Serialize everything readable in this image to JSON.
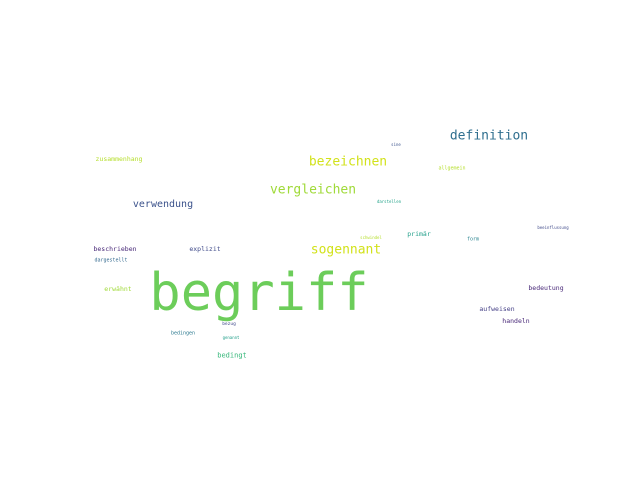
{
  "words": {
    "begriff": {
      "text": "begriff",
      "color": "#6ccd5a"
    },
    "definition": {
      "text": "definition",
      "color": "#2e6e8e"
    },
    "bezeichnen": {
      "text": "bezeichnen",
      "color": "#d2e21b"
    },
    "vergleichen": {
      "text": "vergleichen",
      "color": "#a0da39"
    },
    "sogennant": {
      "text": "sogennant",
      "color": "#d2e21b"
    },
    "verwendung": {
      "text": "verwendung",
      "color": "#3b528b"
    },
    "zusammenhang": {
      "text": "zusammenhang",
      "color": "#b5de2b"
    },
    "allgemein": {
      "text": "allgemein",
      "color": "#b5de2b"
    },
    "sine": {
      "text": "sine",
      "color": "#3b528b"
    },
    "darstellen": {
      "text": "darstellen",
      "color": "#1fa187"
    },
    "beschrieben": {
      "text": "beschrieben",
      "color": "#482878"
    },
    "explizit": {
      "text": "explizit",
      "color": "#3e4989"
    },
    "schwindel": {
      "text": "schwindel",
      "color": "#b5de2b"
    },
    "primar": {
      "text": "primär",
      "color": "#1f9e89"
    },
    "form": {
      "text": "form",
      "color": "#26828e"
    },
    "beeinflussung": {
      "text": "beeinflussung",
      "color": "#3e4989"
    },
    "dargestellt": {
      "text": "dargestellt",
      "color": "#31688e"
    },
    "erwahnt": {
      "text": "erwähnt",
      "color": "#a0da39"
    },
    "bedeutung": {
      "text": "bedeutung",
      "color": "#482878"
    },
    "aufweisen": {
      "text": "aufweisen",
      "color": "#433e85"
    },
    "handeln": {
      "text": "handeln",
      "color": "#482878"
    },
    "bezug": {
      "text": "bezug",
      "color": "#3e4989"
    },
    "bedingen": {
      "text": "bedingen",
      "color": "#2a788e"
    },
    "genannt": {
      "text": "genannt",
      "color": "#1f9e89"
    },
    "bedingt": {
      "text": "bedingt",
      "color": "#35b779"
    }
  }
}
